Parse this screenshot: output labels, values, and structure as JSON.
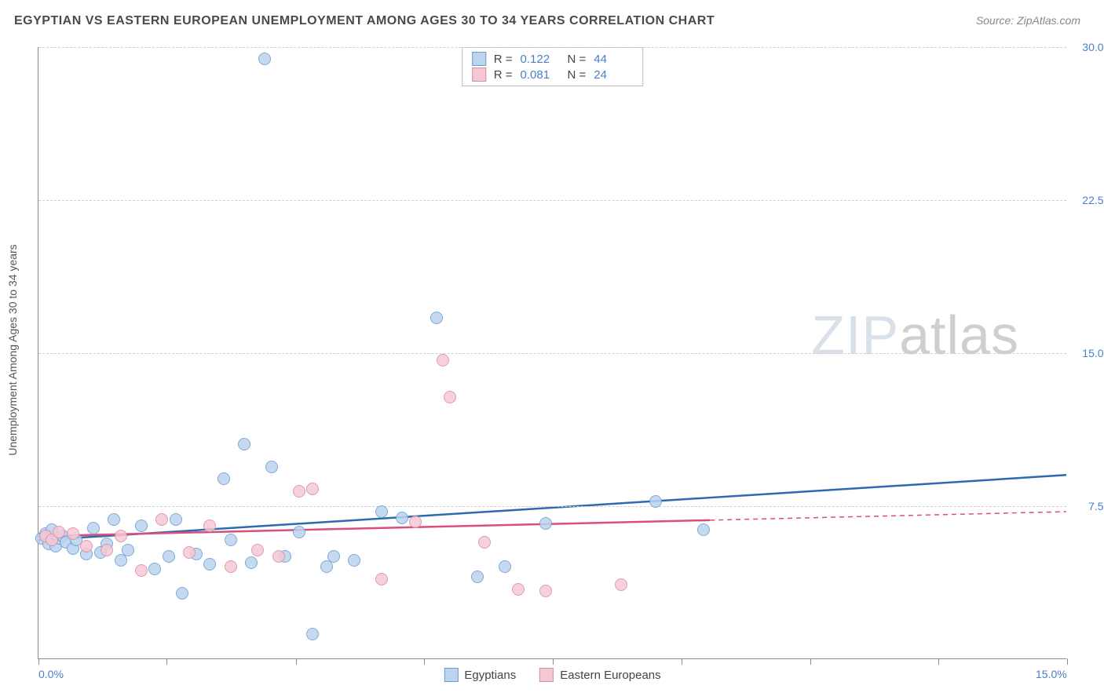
{
  "title": "EGYPTIAN VS EASTERN EUROPEAN UNEMPLOYMENT AMONG AGES 30 TO 34 YEARS CORRELATION CHART",
  "source": "Source: ZipAtlas.com",
  "ylabel": "Unemployment Among Ages 30 to 34 years",
  "watermark_a": "ZIP",
  "watermark_b": "atlas",
  "colors": {
    "series1_fill": "#bcd4ee",
    "series1_stroke": "#6b9bd1",
    "series1_line": "#2e69b3",
    "series2_fill": "#f5c8d4",
    "series2_stroke": "#d98ba3",
    "series2_line": "#d94f7a",
    "tick_text": "#4a7fc8",
    "grid": "#d0d0d0",
    "axis": "#888888"
  },
  "xlim": [
    0,
    15
  ],
  "ylim": [
    0,
    30
  ],
  "xticks": [
    0,
    1.87,
    3.75,
    5.62,
    7.5,
    9.38,
    11.25,
    13.12,
    15
  ],
  "xtick_labels": {
    "0": "0.0%",
    "15": "15.0%"
  },
  "yticks": [
    7.5,
    15.0,
    22.5,
    30.0
  ],
  "ytick_labels": [
    "7.5%",
    "15.0%",
    "22.5%",
    "30.0%"
  ],
  "point_radius": 8,
  "point_stroke_width": 1,
  "trend_line_width": 2.5,
  "series": [
    {
      "name": "Egyptians",
      "color_key": "series1",
      "R": "0.122",
      "N": "44",
      "trend": {
        "x0": 0,
        "y0": 5.8,
        "x1": 15,
        "y1": 9.0,
        "solid_until": 15
      },
      "points": [
        [
          0.05,
          5.9
        ],
        [
          0.1,
          6.1
        ],
        [
          0.15,
          5.6
        ],
        [
          0.2,
          6.3
        ],
        [
          0.25,
          5.5
        ],
        [
          0.3,
          5.9
        ],
        [
          0.35,
          6.0
        ],
        [
          0.4,
          5.7
        ],
        [
          0.5,
          5.4
        ],
        [
          0.55,
          5.8
        ],
        [
          0.7,
          5.1
        ],
        [
          0.8,
          6.4
        ],
        [
          0.9,
          5.2
        ],
        [
          1.0,
          5.6
        ],
        [
          1.1,
          6.8
        ],
        [
          1.2,
          4.8
        ],
        [
          1.3,
          5.3
        ],
        [
          1.5,
          6.5
        ],
        [
          1.7,
          4.4
        ],
        [
          1.9,
          5.0
        ],
        [
          2.0,
          6.8
        ],
        [
          2.1,
          3.2
        ],
        [
          2.3,
          5.1
        ],
        [
          2.5,
          4.6
        ],
        [
          2.7,
          8.8
        ],
        [
          2.8,
          5.8
        ],
        [
          3.0,
          10.5
        ],
        [
          3.1,
          4.7
        ],
        [
          3.3,
          29.4
        ],
        [
          3.4,
          9.4
        ],
        [
          3.6,
          5.0
        ],
        [
          3.8,
          6.2
        ],
        [
          4.0,
          1.2
        ],
        [
          4.2,
          4.5
        ],
        [
          4.3,
          5.0
        ],
        [
          4.6,
          4.8
        ],
        [
          5.0,
          7.2
        ],
        [
          5.3,
          6.9
        ],
        [
          5.8,
          16.7
        ],
        [
          6.4,
          4.0
        ],
        [
          6.8,
          4.5
        ],
        [
          7.4,
          6.6
        ],
        [
          9.0,
          7.7
        ],
        [
          9.7,
          6.3
        ]
      ]
    },
    {
      "name": "Eastern Europeans",
      "color_key": "series2",
      "R": "0.081",
      "N": "24",
      "trend": {
        "x0": 0,
        "y0": 6.0,
        "x1": 15,
        "y1": 7.2,
        "solid_until": 9.8
      },
      "points": [
        [
          0.1,
          6.0
        ],
        [
          0.2,
          5.8
        ],
        [
          0.3,
          6.2
        ],
        [
          0.5,
          6.1
        ],
        [
          0.7,
          5.5
        ],
        [
          1.0,
          5.3
        ],
        [
          1.2,
          6.0
        ],
        [
          1.5,
          4.3
        ],
        [
          1.8,
          6.8
        ],
        [
          2.2,
          5.2
        ],
        [
          2.5,
          6.5
        ],
        [
          2.8,
          4.5
        ],
        [
          3.2,
          5.3
        ],
        [
          3.5,
          5.0
        ],
        [
          3.8,
          8.2
        ],
        [
          4.0,
          8.3
        ],
        [
          5.0,
          3.9
        ],
        [
          5.5,
          6.7
        ],
        [
          5.9,
          14.6
        ],
        [
          6.0,
          12.8
        ],
        [
          6.5,
          5.7
        ],
        [
          7.0,
          3.4
        ],
        [
          7.4,
          3.3
        ],
        [
          8.5,
          3.6
        ]
      ]
    }
  ]
}
